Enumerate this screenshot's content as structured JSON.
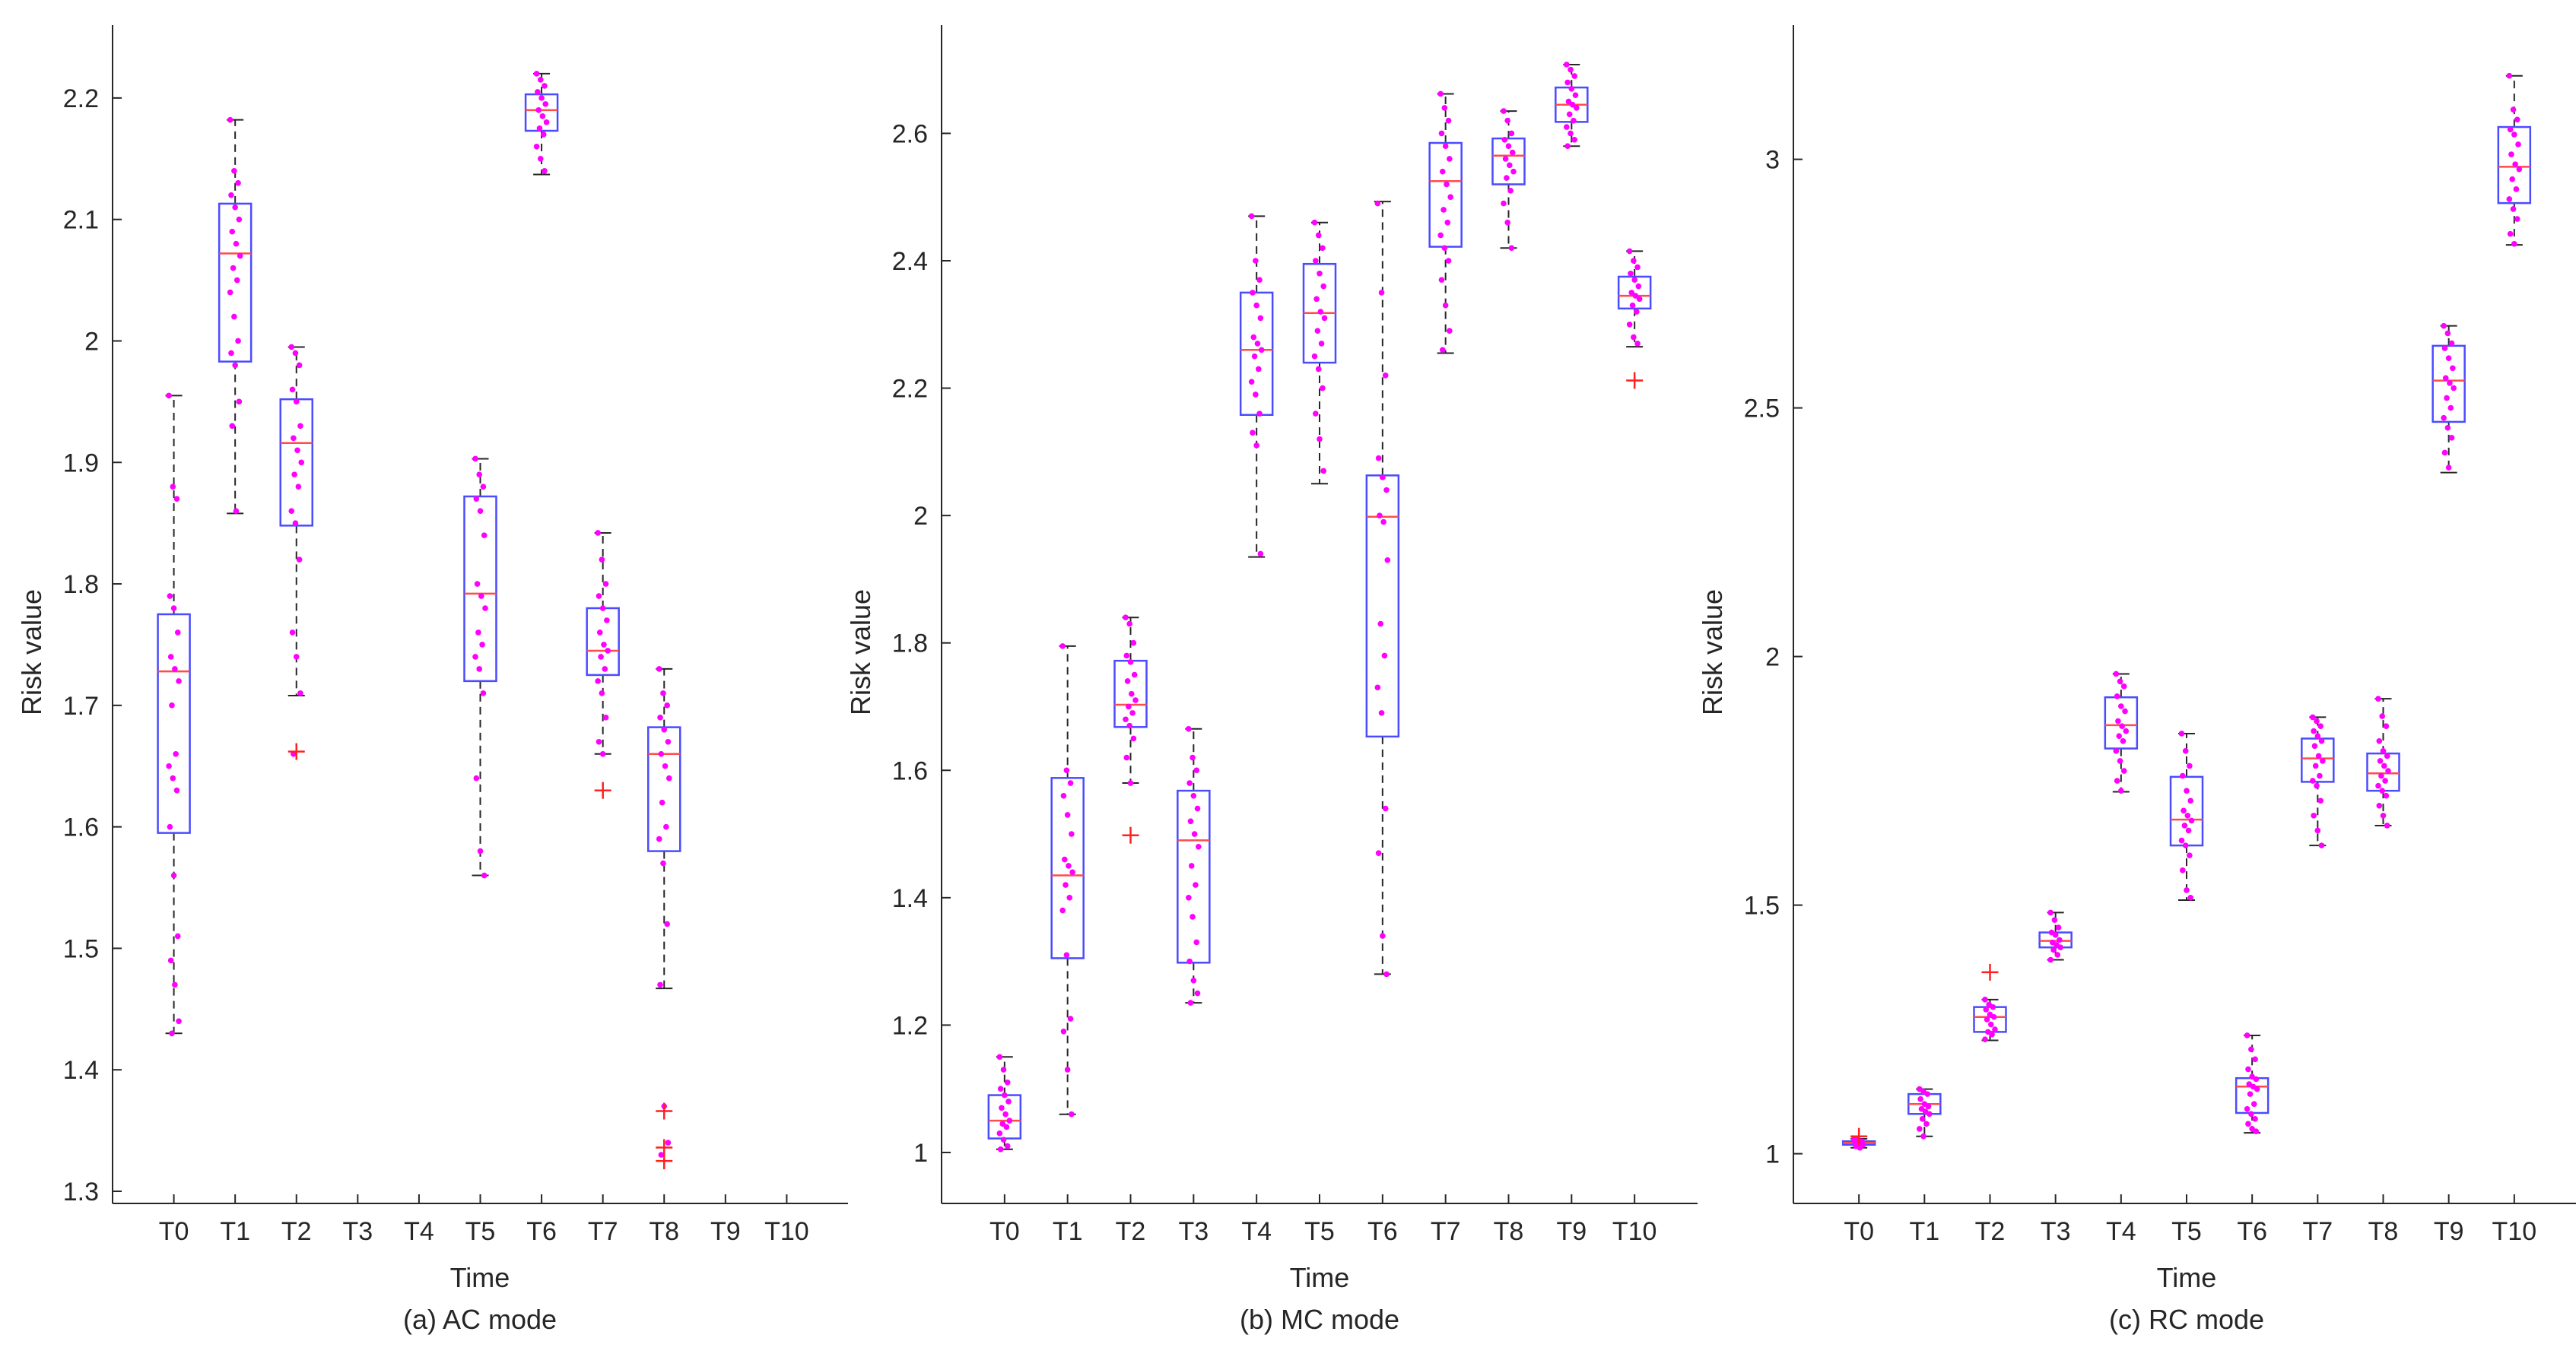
{
  "colors": {
    "box": "#4b4bff",
    "median": "#ff4b4b",
    "whisker": "#262626",
    "outlier": "#ff2020",
    "points": "#ff00ff",
    "axis": "#262626"
  },
  "chart_data": [
    {
      "type": "boxplot",
      "title": "(a) AC mode",
      "xlabel": "Time",
      "ylabel": "Risk value",
      "categories": [
        "T0",
        "T1",
        "T2",
        "T3",
        "T4",
        "T5",
        "T6",
        "T7",
        "T8",
        "T9",
        "T10"
      ],
      "ylim": [
        1.29,
        2.26
      ],
      "yticks": [
        1.3,
        1.4,
        1.5,
        1.6,
        1.7,
        1.8,
        1.9,
        2,
        2.1,
        2.2
      ],
      "ytick_labels": [
        "1.3",
        "1.4",
        "1.5",
        "1.6",
        "1.7",
        "1.8",
        "1.9",
        "2",
        "2.1",
        "2.2"
      ],
      "boxes": [
        {
          "cat": "T0",
          "min": 1.43,
          "q1": 1.595,
          "median": 1.728,
          "q3": 1.775,
          "max": 1.955,
          "outliers": [],
          "points": [
            1.955,
            1.88,
            1.87,
            1.79,
            1.78,
            1.76,
            1.74,
            1.73,
            1.72,
            1.7,
            1.66,
            1.65,
            1.64,
            1.63,
            1.6,
            1.56,
            1.51,
            1.49,
            1.47,
            1.44,
            1.43
          ]
        },
        {
          "cat": "T1",
          "min": 1.858,
          "q1": 1.983,
          "median": 2.072,
          "q3": 2.113,
          "max": 2.182,
          "outliers": [],
          "points": [
            2.182,
            2.14,
            2.13,
            2.12,
            2.11,
            2.1,
            2.09,
            2.08,
            2.07,
            2.06,
            2.05,
            2.04,
            2.02,
            2.0,
            1.99,
            1.98,
            1.95,
            1.93,
            1.86
          ]
        },
        {
          "cat": "T2",
          "min": 1.708,
          "q1": 1.848,
          "median": 1.916,
          "q3": 1.952,
          "max": 1.995,
          "outliers": [
            1.662
          ],
          "points": [
            1.995,
            1.99,
            1.98,
            1.96,
            1.95,
            1.93,
            1.92,
            1.91,
            1.9,
            1.89,
            1.88,
            1.86,
            1.85,
            1.82,
            1.76,
            1.74,
            1.71,
            1.66
          ]
        },
        {
          "cat": "T5",
          "min": 1.56,
          "q1": 1.72,
          "median": 1.792,
          "q3": 1.872,
          "max": 1.903,
          "outliers": [],
          "points": [
            1.903,
            1.89,
            1.88,
            1.87,
            1.86,
            1.84,
            1.8,
            1.79,
            1.78,
            1.76,
            1.75,
            1.74,
            1.73,
            1.71,
            1.64,
            1.58,
            1.56
          ]
        },
        {
          "cat": "T6",
          "min": 2.137,
          "q1": 2.173,
          "median": 2.19,
          "q3": 2.203,
          "max": 2.22,
          "outliers": [],
          "points": [
            2.22,
            2.215,
            2.21,
            2.205,
            2.2,
            2.195,
            2.19,
            2.185,
            2.18,
            2.175,
            2.17,
            2.16,
            2.15,
            2.14
          ]
        },
        {
          "cat": "T7",
          "min": 1.66,
          "q1": 1.725,
          "median": 1.745,
          "q3": 1.78,
          "max": 1.842,
          "outliers": [
            1.63
          ],
          "points": [
            1.842,
            1.82,
            1.8,
            1.79,
            1.78,
            1.77,
            1.76,
            1.75,
            1.745,
            1.74,
            1.73,
            1.72,
            1.71,
            1.69,
            1.67,
            1.66
          ]
        },
        {
          "cat": "T8",
          "min": 1.467,
          "q1": 1.58,
          "median": 1.66,
          "q3": 1.682,
          "max": 1.73,
          "outliers": [
            1.366,
            1.336,
            1.325
          ],
          "points": [
            1.73,
            1.71,
            1.7,
            1.69,
            1.68,
            1.67,
            1.66,
            1.65,
            1.64,
            1.62,
            1.6,
            1.59,
            1.57,
            1.52,
            1.47,
            1.37,
            1.34,
            1.33
          ]
        }
      ]
    },
    {
      "type": "boxplot",
      "title": "(b) MC mode",
      "xlabel": "Time",
      "ylabel": "Risk value",
      "categories": [
        "T0",
        "T1",
        "T2",
        "T3",
        "T4",
        "T5",
        "T6",
        "T7",
        "T8",
        "T9",
        "T10"
      ],
      "ylim": [
        0.92,
        2.77
      ],
      "yticks": [
        1,
        1.2,
        1.4,
        1.6,
        1.8,
        2,
        2.2,
        2.4,
        2.6
      ],
      "ytick_labels": [
        "1",
        "1.2",
        "1.4",
        "1.6",
        "1.8",
        "2",
        "2.2",
        "2.4",
        "2.6"
      ],
      "boxes": [
        {
          "cat": "T0",
          "min": 1.005,
          "q1": 1.022,
          "median": 1.05,
          "q3": 1.09,
          "max": 1.15,
          "outliers": [],
          "points": [
            1.15,
            1.13,
            1.11,
            1.1,
            1.09,
            1.08,
            1.07,
            1.06,
            1.05,
            1.045,
            1.04,
            1.03,
            1.02,
            1.01,
            1.005
          ]
        },
        {
          "cat": "T1",
          "min": 1.06,
          "q1": 1.305,
          "median": 1.435,
          "q3": 1.588,
          "max": 1.795,
          "outliers": [],
          "points": [
            1.795,
            1.6,
            1.58,
            1.56,
            1.53,
            1.5,
            1.46,
            1.45,
            1.44,
            1.42,
            1.4,
            1.38,
            1.31,
            1.21,
            1.19,
            1.13,
            1.06
          ]
        },
        {
          "cat": "T2",
          "min": 1.58,
          "q1": 1.668,
          "median": 1.703,
          "q3": 1.772,
          "max": 1.84,
          "outliers": [
            1.498
          ],
          "points": [
            1.84,
            1.83,
            1.8,
            1.78,
            1.77,
            1.75,
            1.74,
            1.72,
            1.71,
            1.7,
            1.69,
            1.68,
            1.67,
            1.65,
            1.62,
            1.58
          ]
        },
        {
          "cat": "T3",
          "min": 1.235,
          "q1": 1.298,
          "median": 1.49,
          "q3": 1.568,
          "max": 1.665,
          "outliers": [],
          "points": [
            1.665,
            1.62,
            1.6,
            1.58,
            1.56,
            1.54,
            1.52,
            1.5,
            1.48,
            1.45,
            1.42,
            1.4,
            1.37,
            1.33,
            1.3,
            1.27,
            1.25,
            1.235
          ]
        },
        {
          "cat": "T4",
          "min": 1.935,
          "q1": 2.158,
          "median": 2.26,
          "q3": 2.35,
          "max": 2.47,
          "outliers": [],
          "points": [
            2.47,
            2.4,
            2.37,
            2.35,
            2.33,
            2.31,
            2.28,
            2.27,
            2.26,
            2.25,
            2.23,
            2.21,
            2.19,
            2.16,
            2.13,
            2.11,
            1.94
          ]
        },
        {
          "cat": "T5",
          "min": 2.05,
          "q1": 2.24,
          "median": 2.318,
          "q3": 2.395,
          "max": 2.46,
          "outliers": [],
          "points": [
            2.46,
            2.44,
            2.42,
            2.4,
            2.38,
            2.36,
            2.34,
            2.32,
            2.31,
            2.29,
            2.27,
            2.25,
            2.23,
            2.2,
            2.16,
            2.12,
            2.07
          ]
        },
        {
          "cat": "T6",
          "min": 1.28,
          "q1": 1.653,
          "median": 1.998,
          "q3": 2.063,
          "max": 2.493,
          "outliers": [],
          "points": [
            2.49,
            2.35,
            2.22,
            2.09,
            2.06,
            2.04,
            2.0,
            1.99,
            1.93,
            1.83,
            1.78,
            1.73,
            1.69,
            1.54,
            1.47,
            1.34,
            1.28
          ]
        },
        {
          "cat": "T7",
          "min": 2.255,
          "q1": 2.422,
          "median": 2.525,
          "q3": 2.585,
          "max": 2.662,
          "outliers": [],
          "points": [
            2.662,
            2.64,
            2.62,
            2.6,
            2.58,
            2.56,
            2.54,
            2.52,
            2.5,
            2.48,
            2.46,
            2.44,
            2.42,
            2.4,
            2.37,
            2.33,
            2.29,
            2.26
          ]
        },
        {
          "cat": "T8",
          "min": 2.42,
          "q1": 2.52,
          "median": 2.565,
          "q3": 2.592,
          "max": 2.635,
          "outliers": [],
          "points": [
            2.635,
            2.62,
            2.6,
            2.59,
            2.58,
            2.57,
            2.56,
            2.55,
            2.54,
            2.53,
            2.51,
            2.49,
            2.46,
            2.42
          ]
        },
        {
          "cat": "T9",
          "min": 2.58,
          "q1": 2.618,
          "median": 2.645,
          "q3": 2.672,
          "max": 2.708,
          "outliers": [],
          "points": [
            2.708,
            2.7,
            2.69,
            2.68,
            2.67,
            2.66,
            2.65,
            2.645,
            2.64,
            2.63,
            2.62,
            2.61,
            2.6,
            2.59,
            2.58
          ]
        },
        {
          "cat": "T10",
          "min": 2.265,
          "q1": 2.325,
          "median": 2.345,
          "q3": 2.375,
          "max": 2.415,
          "outliers": [
            2.212
          ],
          "points": [
            2.415,
            2.4,
            2.39,
            2.38,
            2.37,
            2.36,
            2.35,
            2.345,
            2.34,
            2.33,
            2.32,
            2.3,
            2.28,
            2.27
          ]
        }
      ]
    },
    {
      "type": "boxplot",
      "title": "(c) RC mode",
      "xlabel": "Time",
      "ylabel": "Risk value",
      "categories": [
        "T0",
        "T1",
        "T2",
        "T3",
        "T4",
        "T5",
        "T6",
        "T7",
        "T8",
        "T9",
        "T10"
      ],
      "ylim": [
        0.9,
        3.27
      ],
      "yticks": [
        1,
        1.5,
        2,
        2.5,
        3
      ],
      "ytick_labels": [
        "1",
        "1.5",
        "2",
        "2.5",
        "3"
      ],
      "boxes": [
        {
          "cat": "T0",
          "min": 1.012,
          "q1": 1.018,
          "median": 1.022,
          "q3": 1.025,
          "max": 1.03,
          "outliers": [
            1.035
          ],
          "points": [
            1.03,
            1.028,
            1.025,
            1.022,
            1.02,
            1.018,
            1.015,
            1.012
          ]
        },
        {
          "cat": "T1",
          "min": 1.035,
          "q1": 1.08,
          "median": 1.1,
          "q3": 1.12,
          "max": 1.13,
          "outliers": [],
          "points": [
            1.13,
            1.125,
            1.12,
            1.11,
            1.1,
            1.095,
            1.09,
            1.085,
            1.08,
            1.07,
            1.06,
            1.05,
            1.035
          ]
        },
        {
          "cat": "T2",
          "min": 1.228,
          "q1": 1.245,
          "median": 1.275,
          "q3": 1.295,
          "max": 1.31,
          "outliers": [
            1.365
          ],
          "points": [
            1.31,
            1.3,
            1.295,
            1.29,
            1.28,
            1.275,
            1.27,
            1.26,
            1.25,
            1.245,
            1.24,
            1.23
          ]
        },
        {
          "cat": "T3",
          "min": 1.39,
          "q1": 1.415,
          "median": 1.428,
          "q3": 1.445,
          "max": 1.485,
          "outliers": [],
          "points": [
            1.485,
            1.47,
            1.455,
            1.445,
            1.44,
            1.43,
            1.425,
            1.42,
            1.415,
            1.41,
            1.4,
            1.39
          ]
        },
        {
          "cat": "T4",
          "min": 1.728,
          "q1": 1.815,
          "median": 1.862,
          "q3": 1.918,
          "max": 1.965,
          "outliers": [],
          "points": [
            1.965,
            1.95,
            1.94,
            1.92,
            1.9,
            1.89,
            1.87,
            1.86,
            1.85,
            1.84,
            1.83,
            1.81,
            1.79,
            1.77,
            1.75,
            1.73
          ]
        },
        {
          "cat": "T5",
          "min": 1.51,
          "q1": 1.62,
          "median": 1.672,
          "q3": 1.758,
          "max": 1.845,
          "outliers": [],
          "points": [
            1.845,
            1.81,
            1.78,
            1.76,
            1.73,
            1.71,
            1.69,
            1.68,
            1.67,
            1.66,
            1.65,
            1.63,
            1.62,
            1.6,
            1.57,
            1.53,
            1.515
          ]
        },
        {
          "cat": "T6",
          "min": 1.042,
          "q1": 1.082,
          "median": 1.135,
          "q3": 1.152,
          "max": 1.238,
          "outliers": [],
          "points": [
            1.238,
            1.21,
            1.19,
            1.17,
            1.155,
            1.15,
            1.14,
            1.135,
            1.13,
            1.12,
            1.1,
            1.09,
            1.08,
            1.07,
            1.06,
            1.05,
            1.045
          ]
        },
        {
          "cat": "T7",
          "min": 1.62,
          "q1": 1.748,
          "median": 1.795,
          "q3": 1.835,
          "max": 1.878,
          "outliers": [],
          "points": [
            1.878,
            1.87,
            1.86,
            1.85,
            1.84,
            1.83,
            1.82,
            1.8,
            1.79,
            1.78,
            1.76,
            1.75,
            1.74,
            1.71,
            1.68,
            1.65,
            1.62
          ]
        },
        {
          "cat": "T8",
          "min": 1.66,
          "q1": 1.73,
          "median": 1.765,
          "q3": 1.805,
          "max": 1.915,
          "outliers": [],
          "points": [
            1.915,
            1.88,
            1.86,
            1.83,
            1.81,
            1.8,
            1.79,
            1.78,
            1.77,
            1.76,
            1.75,
            1.74,
            1.73,
            1.72,
            1.7,
            1.68,
            1.66
          ]
        },
        {
          "cat": "T9",
          "min": 2.37,
          "q1": 2.472,
          "median": 2.555,
          "q3": 2.625,
          "max": 2.665,
          "outliers": [],
          "points": [
            2.665,
            2.65,
            2.63,
            2.62,
            2.6,
            2.58,
            2.56,
            2.55,
            2.54,
            2.52,
            2.5,
            2.48,
            2.46,
            2.44,
            2.41,
            2.38
          ]
        },
        {
          "cat": "T10",
          "min": 2.828,
          "q1": 2.912,
          "median": 2.985,
          "q3": 3.065,
          "max": 3.168,
          "outliers": [],
          "points": [
            3.168,
            3.1,
            3.08,
            3.06,
            3.05,
            3.03,
            3.01,
            2.99,
            2.98,
            2.96,
            2.94,
            2.92,
            2.9,
            2.88,
            2.85,
            2.83
          ]
        }
      ]
    }
  ]
}
